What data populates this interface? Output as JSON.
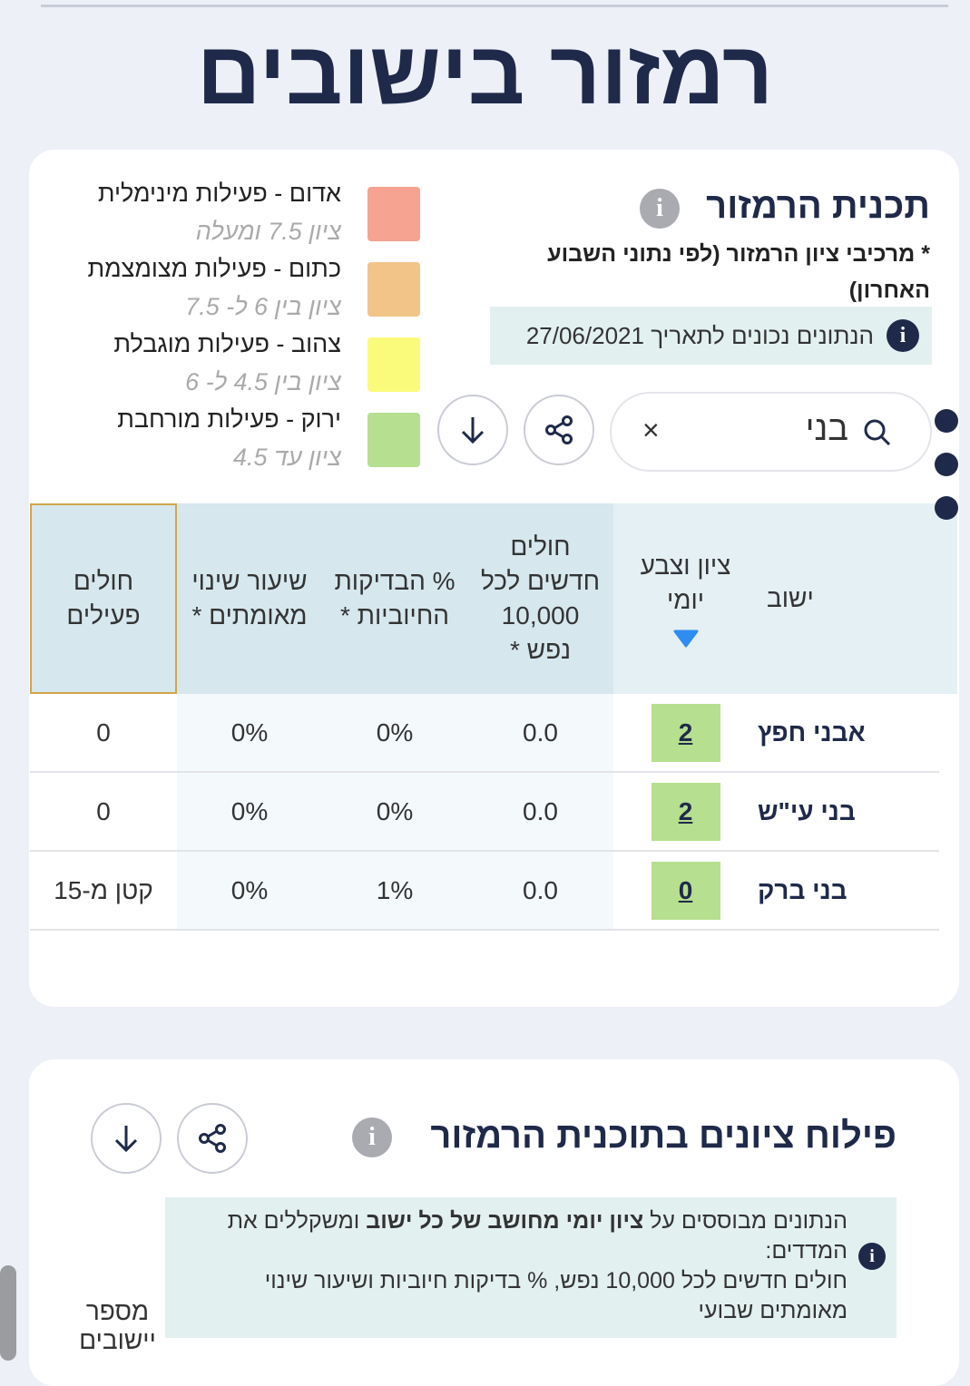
{
  "header": {
    "title": "רמזור בישובים"
  },
  "plan_card": {
    "title": "תכנית הרמזור",
    "subtitle": "* מרכיבי ציון הרמזור (לפי נתוני השבוע האחרון)",
    "date_note": "הנתונים נכונים לתאריך 27/06/2021",
    "search": {
      "value": "בני",
      "clear": "×"
    },
    "legend": [
      {
        "label": "אדום - פעילות מינימלית",
        "range": "ציון 7.5 ומעלה",
        "color": "#f6a392"
      },
      {
        "label": "כתום - פעילות מצומצמת",
        "range": "ציון בין 6 ל- 7.5",
        "color": "#f2c487"
      },
      {
        "label": "צהוב - פעילות מוגבלת",
        "range": "ציון בין 4.5 ל- 6",
        "color": "#fbfb7b"
      },
      {
        "label": "ירוק - פעילות מורחבת",
        "range": "ציון עד 4.5",
        "color": "#b6df8f"
      }
    ],
    "table": {
      "headers": [
        "ישוב",
        "ציון וצבע יומי",
        "חולים חדשים לכל 10,000 נפש *",
        "% הבדיקות החיוביות *",
        "שיעור שינוי מאומתים *",
        "חולים פעילים"
      ],
      "rows": [
        [
          "אבני חפץ",
          "2",
          "0.0",
          "0%",
          "0%",
          "0"
        ],
        [
          "בני עי\"ש",
          "2",
          "0.0",
          "0%",
          "0%",
          "0"
        ],
        [
          "בני ברק",
          "0",
          "0.0",
          "1%",
          "0%",
          "קטן מ-15"
        ]
      ]
    }
  },
  "scores_card": {
    "title": "פילוח ציונים בתוכנית הרמזור",
    "info": {
      "before": "הנתונים מבוססים על ",
      "bold": "ציון יומי מחושב של כל ישוב",
      "after": " ומשקללים את המדדים:",
      "line2": "חולים חדשים לכל 10,000 נפש, % בדיקות חיוביות ושיעור שינוי מאומתים שבועי"
    },
    "axis_label": "מספר יישובים"
  }
}
